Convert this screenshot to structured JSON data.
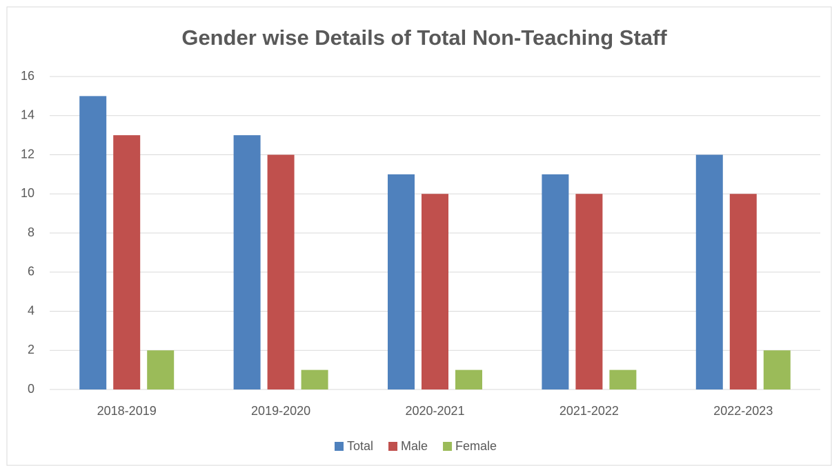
{
  "chart_data": {
    "type": "bar",
    "title": "Gender wise Details of Total Non-Teaching Staff",
    "categories": [
      "2018-2019",
      "2019-2020",
      "2020-2021",
      "2021-2022",
      "2022-2023"
    ],
    "series": [
      {
        "name": "Total",
        "color": "#4f81bd",
        "values": [
          15,
          13,
          11,
          11,
          12
        ]
      },
      {
        "name": "Male",
        "color": "#c0504d",
        "values": [
          13,
          12,
          10,
          10,
          10
        ]
      },
      {
        "name": "Female",
        "color": "#9bbb59",
        "values": [
          2,
          1,
          1,
          1,
          2
        ]
      }
    ],
    "ylim": [
      0,
      16
    ],
    "yticks": [
      0,
      2,
      4,
      6,
      8,
      10,
      12,
      14,
      16
    ],
    "grid": true,
    "legend": "bottom"
  }
}
